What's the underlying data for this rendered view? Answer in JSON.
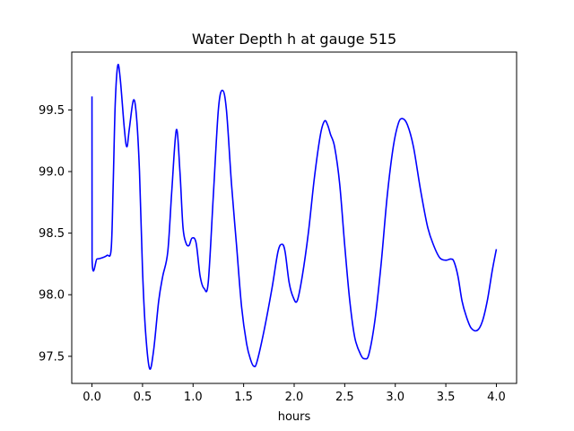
{
  "chart_data": {
    "type": "line",
    "title": "Water Depth h at gauge 515",
    "xlabel": "hours",
    "ylabel": "",
    "xlim": [
      -0.2,
      4.2
    ],
    "ylim": [
      97.28,
      99.97
    ],
    "xticks": [
      0.0,
      0.5,
      1.0,
      1.5,
      2.0,
      2.5,
      3.0,
      3.5,
      4.0
    ],
    "xtick_labels": [
      "0.0",
      "0.5",
      "1.0",
      "1.5",
      "2.0",
      "2.5",
      "3.0",
      "3.5",
      "4.0"
    ],
    "yticks": [
      97.5,
      98.0,
      98.5,
      99.0,
      99.5
    ],
    "ytick_labels": [
      "97.5",
      "98.0",
      "98.5",
      "99.0",
      "99.5"
    ],
    "grid": false,
    "series": [
      {
        "color": "#0000ff",
        "points": [
          [
            0.0,
            99.61
          ],
          [
            0.001,
            98.29
          ],
          [
            0.05,
            98.29
          ],
          [
            0.1,
            98.3
          ],
          [
            0.15,
            98.32
          ],
          [
            0.19,
            98.37
          ],
          [
            0.21,
            98.9
          ],
          [
            0.23,
            99.55
          ],
          [
            0.255,
            99.86
          ],
          [
            0.28,
            99.75
          ],
          [
            0.32,
            99.35
          ],
          [
            0.345,
            99.2
          ],
          [
            0.37,
            99.35
          ],
          [
            0.41,
            99.58
          ],
          [
            0.44,
            99.45
          ],
          [
            0.47,
            99.0
          ],
          [
            0.5,
            98.2
          ],
          [
            0.53,
            97.7
          ],
          [
            0.57,
            97.4
          ],
          [
            0.61,
            97.55
          ],
          [
            0.66,
            97.95
          ],
          [
            0.7,
            98.15
          ],
          [
            0.75,
            98.35
          ],
          [
            0.79,
            98.85
          ],
          [
            0.835,
            99.34
          ],
          [
            0.87,
            99.0
          ],
          [
            0.9,
            98.55
          ],
          [
            0.93,
            98.42
          ],
          [
            0.96,
            98.4
          ],
          [
            0.99,
            98.46
          ],
          [
            1.03,
            98.42
          ],
          [
            1.07,
            98.15
          ],
          [
            1.11,
            98.05
          ],
          [
            1.15,
            98.1
          ],
          [
            1.2,
            98.8
          ],
          [
            1.25,
            99.5
          ],
          [
            1.29,
            99.66
          ],
          [
            1.33,
            99.5
          ],
          [
            1.38,
            98.9
          ],
          [
            1.43,
            98.4
          ],
          [
            1.48,
            97.9
          ],
          [
            1.53,
            97.6
          ],
          [
            1.57,
            97.47
          ],
          [
            1.6,
            97.42
          ],
          [
            1.63,
            97.45
          ],
          [
            1.7,
            97.7
          ],
          [
            1.78,
            98.05
          ],
          [
            1.84,
            98.35
          ],
          [
            1.88,
            98.41
          ],
          [
            1.91,
            98.35
          ],
          [
            1.95,
            98.1
          ],
          [
            1.99,
            97.98
          ],
          [
            2.03,
            97.95
          ],
          [
            2.08,
            98.15
          ],
          [
            2.14,
            98.5
          ],
          [
            2.2,
            98.95
          ],
          [
            2.26,
            99.3
          ],
          [
            2.3,
            99.41
          ],
          [
            2.33,
            99.38
          ],
          [
            2.36,
            99.3
          ],
          [
            2.4,
            99.2
          ],
          [
            2.45,
            98.9
          ],
          [
            2.5,
            98.4
          ],
          [
            2.55,
            97.95
          ],
          [
            2.6,
            97.65
          ],
          [
            2.66,
            97.51
          ],
          [
            2.7,
            97.48
          ],
          [
            2.74,
            97.52
          ],
          [
            2.8,
            97.8
          ],
          [
            2.86,
            98.25
          ],
          [
            2.92,
            98.8
          ],
          [
            2.98,
            99.2
          ],
          [
            3.03,
            99.39
          ],
          [
            3.07,
            99.43
          ],
          [
            3.12,
            99.38
          ],
          [
            3.18,
            99.2
          ],
          [
            3.25,
            98.85
          ],
          [
            3.32,
            98.55
          ],
          [
            3.38,
            98.4
          ],
          [
            3.44,
            98.3
          ],
          [
            3.5,
            98.28
          ],
          [
            3.55,
            98.29
          ],
          [
            3.58,
            98.27
          ],
          [
            3.62,
            98.15
          ],
          [
            3.66,
            97.95
          ],
          [
            3.7,
            97.83
          ],
          [
            3.75,
            97.73
          ],
          [
            3.81,
            97.71
          ],
          [
            3.86,
            97.78
          ],
          [
            3.91,
            97.95
          ],
          [
            3.96,
            98.2
          ],
          [
            4.0,
            98.37
          ]
        ]
      }
    ]
  }
}
